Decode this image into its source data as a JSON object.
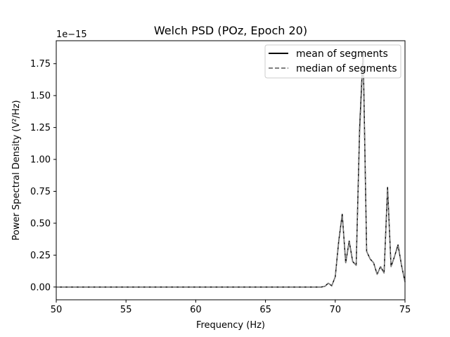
{
  "chart_data": {
    "type": "line",
    "title": "Welch PSD (POz, Epoch 20)",
    "xlabel": "Frequency (Hz)",
    "ylabel": "Power Spectral Density (V²/Hz)",
    "y_offset_label": "1e−15",
    "xlim": [
      50,
      75
    ],
    "ylim": [
      -0.1,
      1.93
    ],
    "y_scale_exponent": -15,
    "x_ticks": [
      50,
      55,
      60,
      65,
      70,
      75
    ],
    "x_tick_labels": [
      "50",
      "55",
      "60",
      "65",
      "70",
      "75"
    ],
    "y_ticks": [
      0.0,
      0.25,
      0.5,
      0.75,
      1.0,
      1.25,
      1.5,
      1.75
    ],
    "y_tick_labels": [
      "0.00",
      "0.25",
      "0.50",
      "0.75",
      "1.00",
      "1.25",
      "1.50",
      "1.75"
    ],
    "grid": false,
    "legend_position": "top-right",
    "series": [
      {
        "name": "mean of segments",
        "color": "#000000",
        "dash": "solid",
        "x": [
          50,
          55,
          60,
          65,
          69.0,
          69.25,
          69.5,
          69.75,
          70.0,
          70.25,
          70.5,
          70.75,
          71.0,
          71.25,
          71.5,
          71.75,
          72.0,
          72.25,
          72.5,
          72.75,
          73.0,
          73.25,
          73.5,
          73.75,
          74.0,
          74.25,
          74.5,
          74.75,
          75.0
        ],
        "values": [
          0.0,
          0.0,
          0.0,
          0.0,
          0.0,
          0.005,
          0.03,
          0.01,
          0.08,
          0.36,
          0.57,
          0.19,
          0.36,
          0.2,
          0.17,
          1.25,
          1.85,
          0.28,
          0.22,
          0.19,
          0.1,
          0.16,
          0.11,
          0.78,
          0.16,
          0.24,
          0.33,
          0.17,
          0.04
        ]
      },
      {
        "name": "median of segments",
        "color": "#808080",
        "dash": "dashed",
        "x": [
          50,
          55,
          60,
          65,
          69.0,
          69.25,
          69.5,
          69.75,
          70.0,
          70.25,
          70.5,
          70.75,
          71.0,
          71.25,
          71.5,
          71.75,
          72.0,
          72.25,
          72.5,
          72.75,
          73.0,
          73.25,
          73.5,
          73.75,
          74.0,
          74.25,
          74.5,
          74.75,
          75.0
        ],
        "values": [
          0.0,
          0.0,
          0.0,
          0.0,
          0.0,
          0.005,
          0.03,
          0.01,
          0.08,
          0.35,
          0.56,
          0.19,
          0.35,
          0.2,
          0.17,
          1.2,
          1.8,
          0.28,
          0.22,
          0.19,
          0.1,
          0.16,
          0.11,
          0.76,
          0.16,
          0.24,
          0.32,
          0.17,
          0.04
        ]
      }
    ]
  }
}
